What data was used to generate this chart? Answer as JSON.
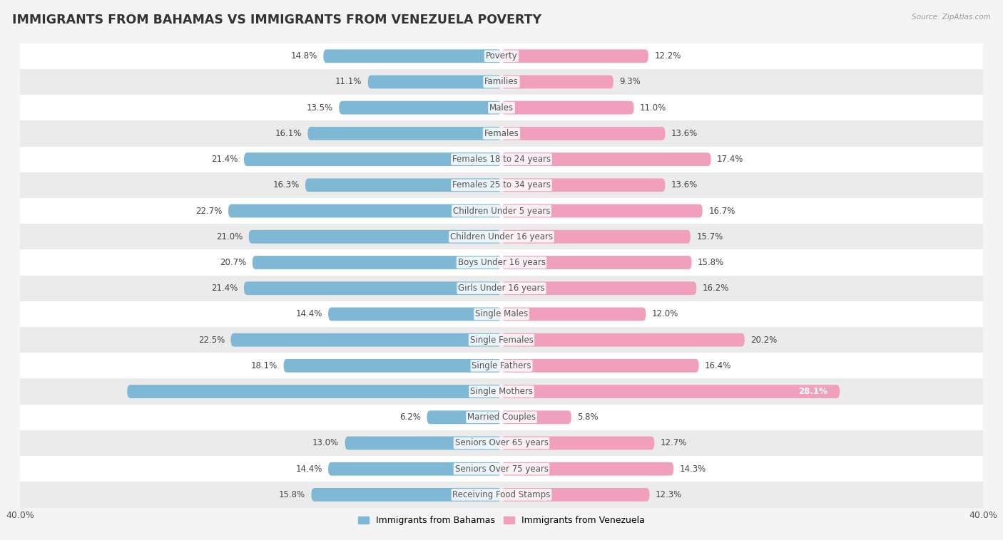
{
  "title": "IMMIGRANTS FROM BAHAMAS VS IMMIGRANTS FROM VENEZUELA POVERTY",
  "source": "Source: ZipAtlas.com",
  "categories": [
    "Poverty",
    "Families",
    "Males",
    "Females",
    "Females 18 to 24 years",
    "Females 25 to 34 years",
    "Children Under 5 years",
    "Children Under 16 years",
    "Boys Under 16 years",
    "Girls Under 16 years",
    "Single Males",
    "Single Females",
    "Single Fathers",
    "Single Mothers",
    "Married Couples",
    "Seniors Over 65 years",
    "Seniors Over 75 years",
    "Receiving Food Stamps"
  ],
  "bahamas_values": [
    14.8,
    11.1,
    13.5,
    16.1,
    21.4,
    16.3,
    22.7,
    21.0,
    20.7,
    21.4,
    14.4,
    22.5,
    18.1,
    31.1,
    6.2,
    13.0,
    14.4,
    15.8
  ],
  "venezuela_values": [
    12.2,
    9.3,
    11.0,
    13.6,
    17.4,
    13.6,
    16.7,
    15.7,
    15.8,
    16.2,
    12.0,
    20.2,
    16.4,
    28.1,
    5.8,
    12.7,
    14.3,
    12.3
  ],
  "bahamas_color": "#7eb8d4",
  "venezuela_color": "#f0a0bc",
  "bahamas_label": "Immigrants from Bahamas",
  "venezuela_label": "Immigrants from Venezuela",
  "xlim": 40.0,
  "bar_height": 0.52,
  "background_color": "#f4f4f4",
  "row_bg_light": "#ffffff",
  "row_bg_dark": "#ebebeb",
  "title_fontsize": 12.5,
  "label_fontsize": 8.5,
  "value_fontsize": 8.5
}
